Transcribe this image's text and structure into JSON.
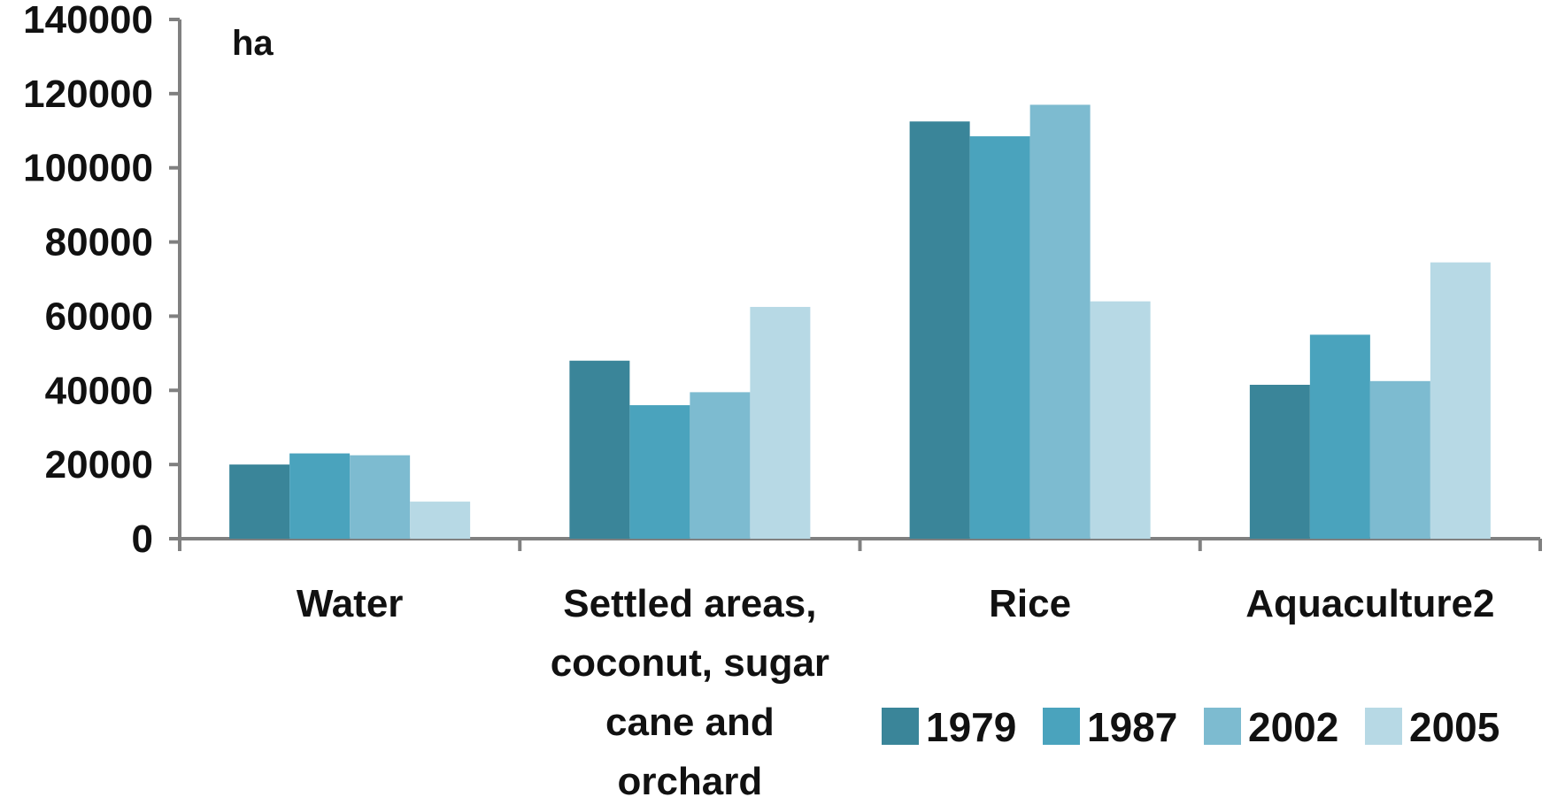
{
  "chart_data": {
    "type": "bar",
    "title": "",
    "ylabel": "ha",
    "xlabel": "",
    "ylim": [
      0,
      140000
    ],
    "yticks": [
      {
        "value": 0,
        "label": "0"
      },
      {
        "value": 20000,
        "label": "20000"
      },
      {
        "value": 40000,
        "label": "40000"
      },
      {
        "value": 60000,
        "label": "60000"
      },
      {
        "value": 80000,
        "label": "80000"
      },
      {
        "value": 100000,
        "label": "100000"
      },
      {
        "value": 120000,
        "label": "120000"
      },
      {
        "value": 140000,
        "label": "140000"
      }
    ],
    "categories": [
      {
        "key": "water",
        "lines": [
          "Water"
        ]
      },
      {
        "key": "settled",
        "lines": [
          "Settled areas,",
          "coconut, sugar",
          "cane and",
          "orchard"
        ]
      },
      {
        "key": "rice",
        "lines": [
          "Rice"
        ]
      },
      {
        "key": "aquaculture",
        "lines": [
          "Aquaculture2"
        ]
      }
    ],
    "series": [
      {
        "name": "1979",
        "color": "#3A8599",
        "values": [
          20000,
          48000,
          112500,
          41500
        ]
      },
      {
        "name": "1987",
        "color": "#4AA3BD",
        "values": [
          23000,
          36000,
          108500,
          55000
        ]
      },
      {
        "name": "2002",
        "color": "#7DBBD0",
        "values": [
          22500,
          39500,
          117000,
          42500
        ]
      },
      {
        "name": "2005",
        "color": "#B7D9E5",
        "values": [
          10000,
          62500,
          64000,
          74500
        ]
      }
    ],
    "grid": false,
    "legend_position": "bottom-right"
  }
}
